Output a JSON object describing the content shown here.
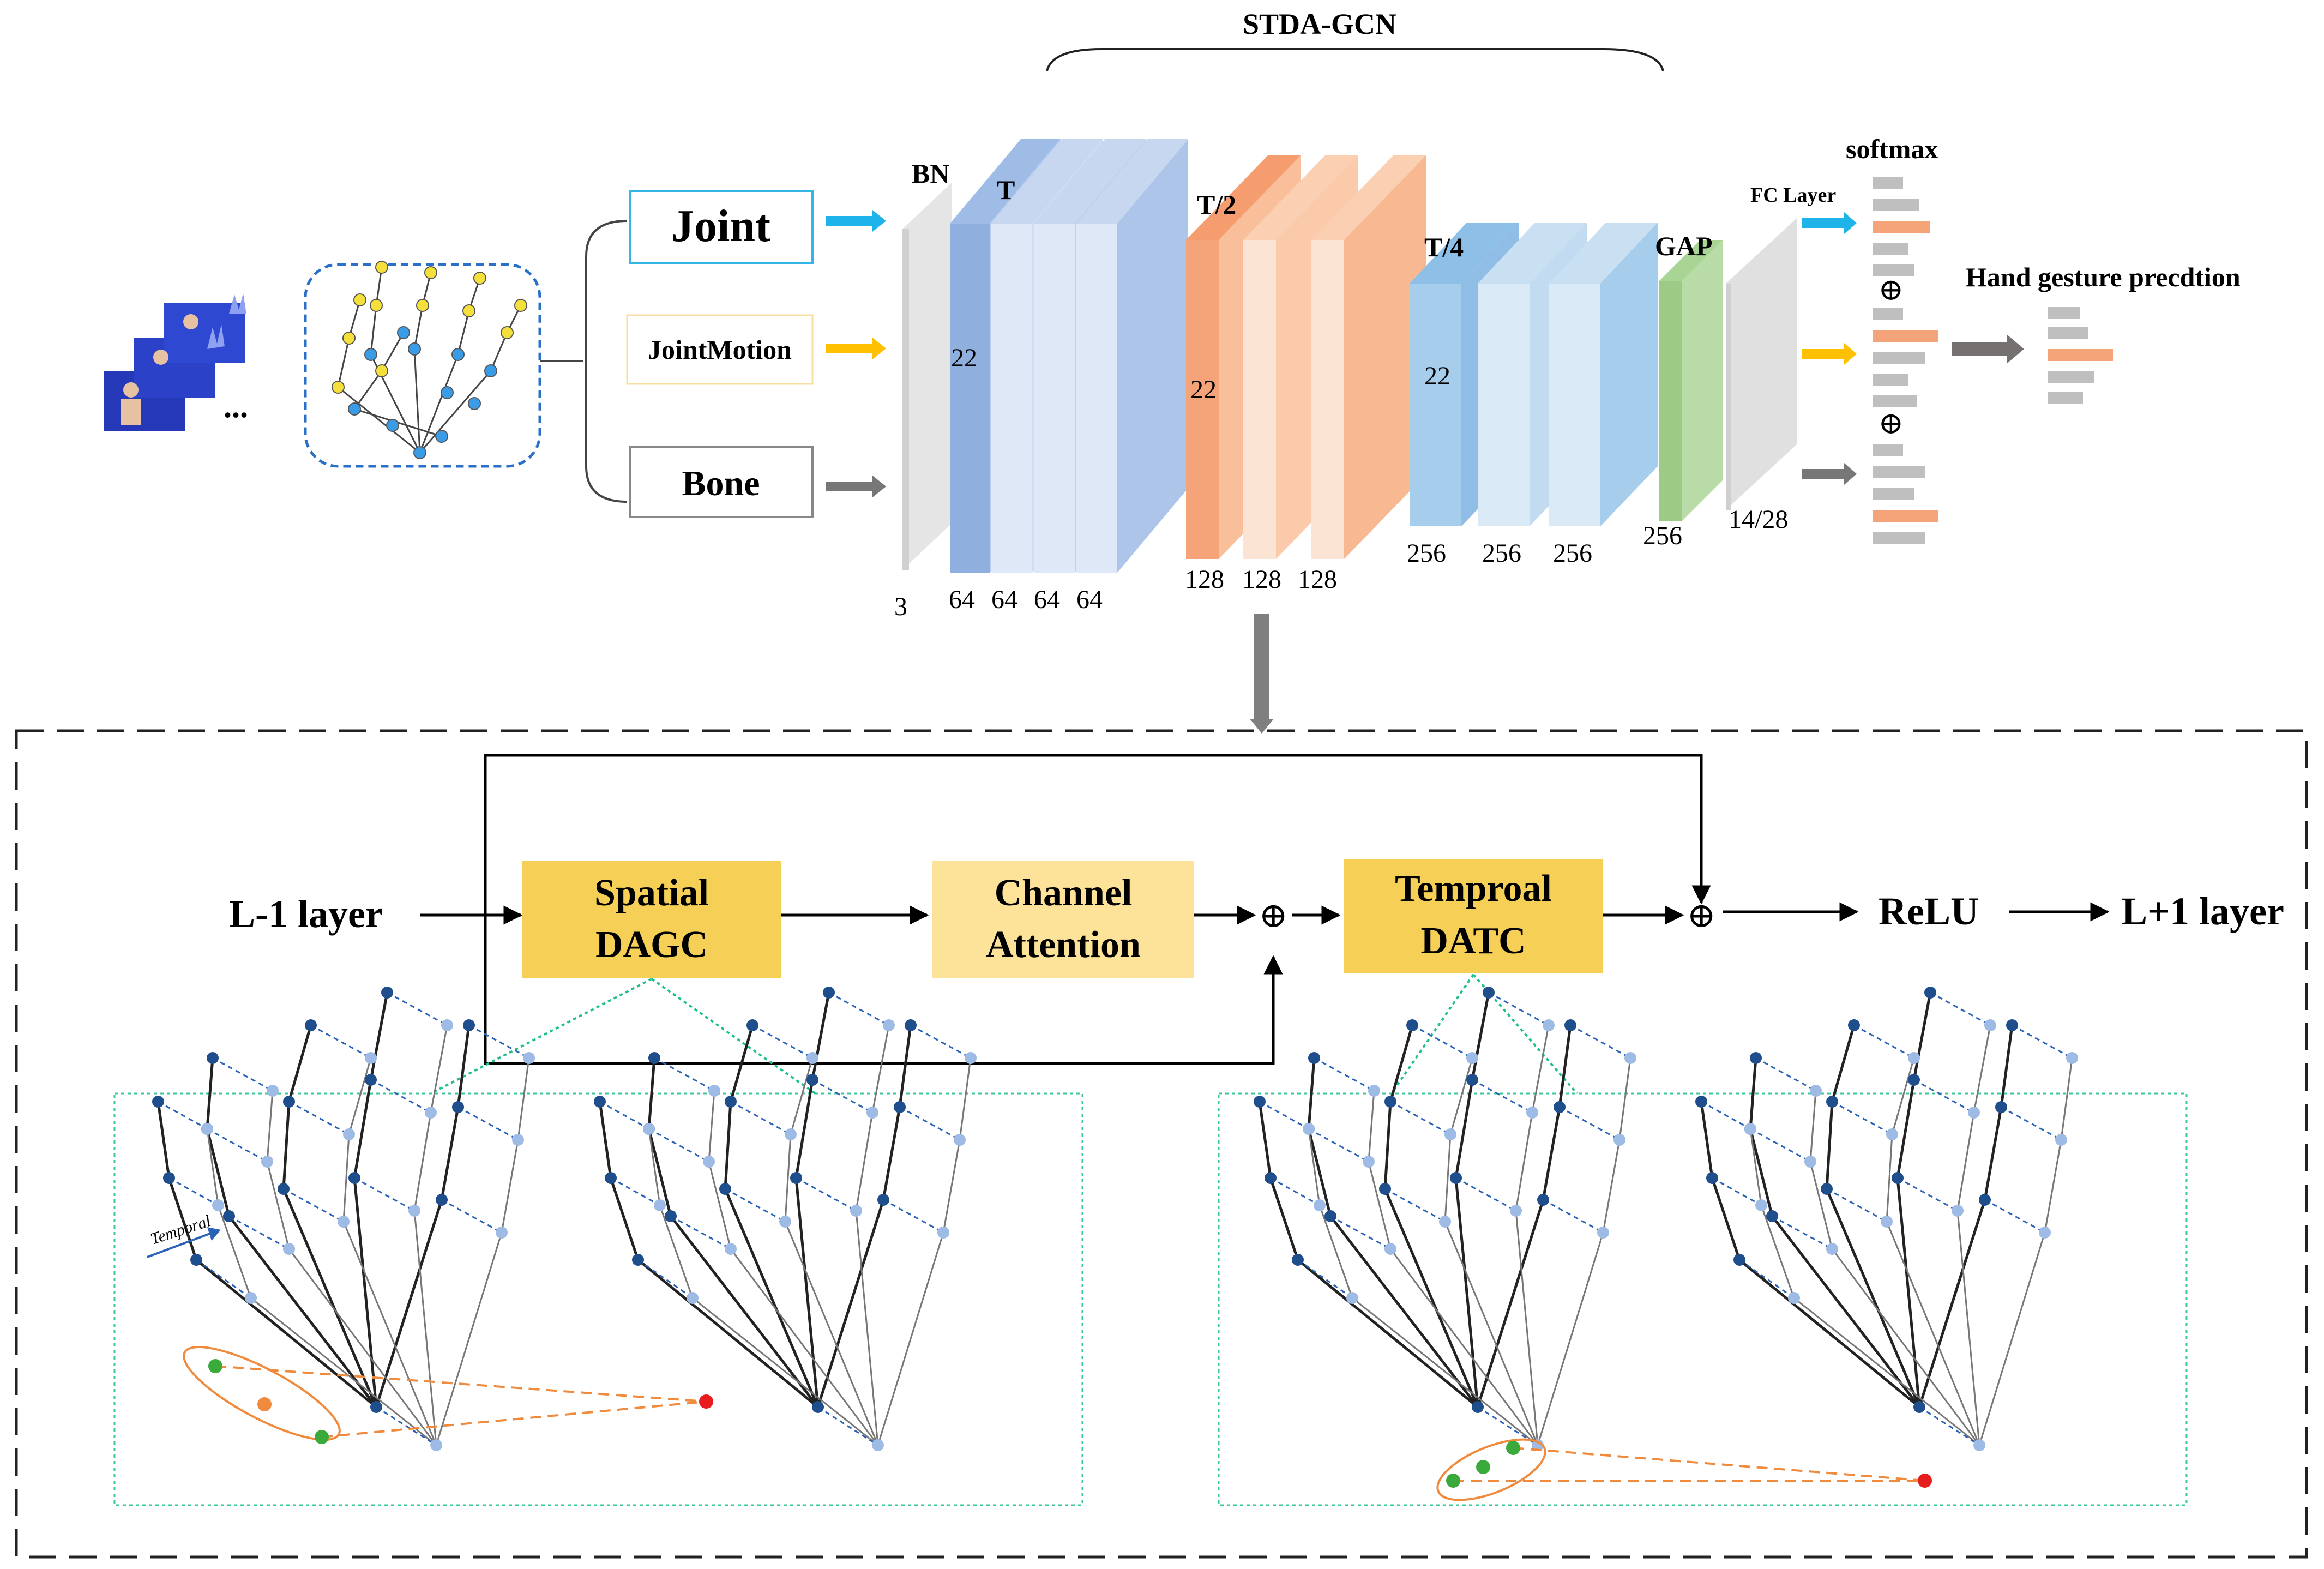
{
  "title": "STDA-GCN",
  "inputs": {
    "joint": "Joint",
    "joint_motion": "JointMotion",
    "bone": "Bone",
    "ellipsis": "..."
  },
  "network": {
    "bn": "BN",
    "t": "T",
    "t2": "T/2",
    "t4": "T/4",
    "gap": "GAP",
    "fc_layer": "FC Layer",
    "softmax": "softmax",
    "prediction": "Hand gesture precdtion",
    "joints_22": "22",
    "ch_3": "3",
    "ch_64": "64",
    "ch_128": "128",
    "ch_256": "256",
    "ch_out": "14/28"
  },
  "block": {
    "input": "L-1 layer",
    "spatial_1": "Spatial",
    "spatial_2": "DAGC",
    "channel_1": "Channel",
    "channel_2": "Attention",
    "temporal_1": "Temproal",
    "temporal_2": "DATC",
    "relu": "ReLU",
    "output": "L+1 layer",
    "plus": "⊕",
    "temporal_arrow": "Temporal"
  },
  "colors": {
    "blue_dark": "#8fb0de",
    "blue_light": "#dfe8f6",
    "orange_dark": "#f4a478",
    "orange_light": "#fce4d4",
    "sky_dark": "#a7cdec",
    "sky_light": "#d9e9f6",
    "green": "#b9dba8",
    "gray": "#d9d9d9",
    "cyan_arrow": "#1eb4ea",
    "yellow_arrow": "#ffc000",
    "gray_arrow": "#777777",
    "spatial_box": "#f6cf57",
    "channel_box": "#fde29a",
    "temporal_box": "#f6cf57",
    "node_dark": "#1f4e8c",
    "node_light": "#9dbbe4",
    "dash_orange": "#f08a3c"
  }
}
